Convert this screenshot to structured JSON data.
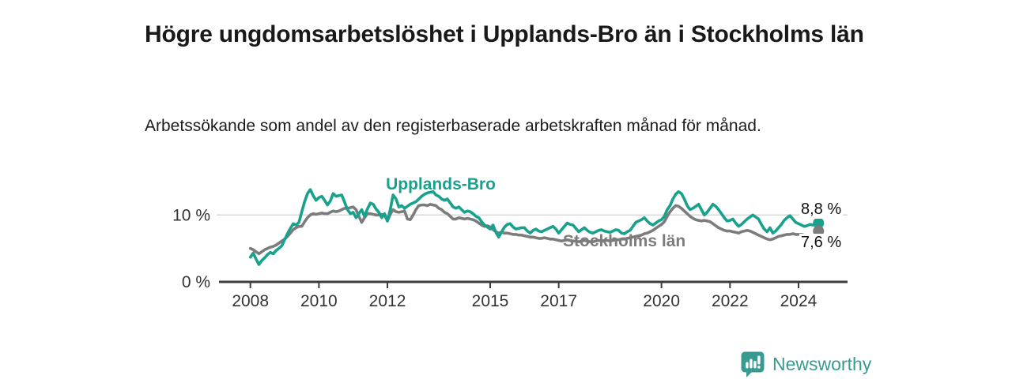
{
  "title": "Högre ungdomsarbetslöshet i Upplands-Bro än i Stockholms län",
  "subtitle": "Arbetssökande som andel av den registerbaserade arbetskraften månad för månad.",
  "branding": {
    "name": "Newsworthy",
    "color": "#399a90",
    "icon": "bar-chart-speech-bubble"
  },
  "chart_data": {
    "type": "line",
    "title": "Högre ungdomsarbetslöshet i Upplands-Bro än i Stockholms län",
    "subtitle": "Arbetssökande som andel av den registerbaserade arbetskraften månad för månad.",
    "x_unit": "month",
    "x_start": 2008.0,
    "x_end": 2024.583,
    "x_ticks": [
      2008,
      2010,
      2012,
      2015,
      2017,
      2020,
      2022,
      2024
    ],
    "y_ticks": [
      {
        "value": 0,
        "label": "0 %"
      },
      {
        "value": 10,
        "label": "10 %"
      }
    ],
    "ylim": [
      0,
      15
    ],
    "grid_values": [
      10
    ],
    "grid_color": "#d8d8d8",
    "axis_color": "#3d3d3d",
    "tick_label_color": "#333333",
    "legend_position": "inline-labels",
    "series": [
      {
        "name": "Upplands-Bro",
        "color": "#18a18d",
        "end_label": "8,8 %",
        "end_value": 8.8,
        "values": [
          3.7,
          4.3,
          3.4,
          2.6,
          3.2,
          3.6,
          4.1,
          4.4,
          4.2,
          4.7,
          5.0,
          5.4,
          6.3,
          7.2,
          8.0,
          8.7,
          8.5,
          8.9,
          10.5,
          12.0,
          13.2,
          13.8,
          12.9,
          12.2,
          12.6,
          12.8,
          12.2,
          11.5,
          12.1,
          13.2,
          12.8,
          12.9,
          13.0,
          11.9,
          10.8,
          10.2,
          10.4,
          9.6,
          10.2,
          10.8,
          9.8,
          10.9,
          11.8,
          11.6,
          10.9,
          10.4,
          9.6,
          10.2,
          9.1,
          10.8,
          13.0,
          12.4,
          11.2,
          11.4,
          11.0,
          11.3,
          11.6,
          11.8,
          12.0,
          12.4,
          12.8,
          13.1,
          13.3,
          13.4,
          13.5,
          13.0,
          12.8,
          12.4,
          12.2,
          12.4,
          11.8,
          11.2,
          11.0,
          11.2,
          10.8,
          10.4,
          10.6,
          10.5,
          10.2,
          9.8,
          9.6,
          9.0,
          8.5,
          8.2,
          7.9,
          8.5,
          7.4,
          6.7,
          7.5,
          8.2,
          8.6,
          8.7,
          8.2,
          7.9,
          8.0,
          8.1,
          8.1,
          7.6,
          7.3,
          7.7,
          7.9,
          7.6,
          7.5,
          7.7,
          7.9,
          8.1,
          8.3,
          7.9,
          7.3,
          7.8,
          8.3,
          8.8,
          8.6,
          8.5,
          8.0,
          7.5,
          7.8,
          8.1,
          7.7,
          7.4,
          7.3,
          7.5,
          7.7,
          7.8,
          7.6,
          7.5,
          7.4,
          7.6,
          7.8,
          7.7,
          7.3,
          7.2,
          7.5,
          7.7,
          8.3,
          8.9,
          9.1,
          9.3,
          9.6,
          9.1,
          8.7,
          8.5,
          8.8,
          9.1,
          9.3,
          9.8,
          10.8,
          11.4,
          12.4,
          13.1,
          13.5,
          13.2,
          12.4,
          11.4,
          10.8,
          11.0,
          11.3,
          11.6,
          10.8,
          10.0,
          10.4,
          11.0,
          11.6,
          11.3,
          10.8,
          10.2,
          9.6,
          9.1,
          9.2,
          9.4,
          8.8,
          8.3,
          8.6,
          9.0,
          9.4,
          9.7,
          10.0,
          9.7,
          9.4,
          8.6,
          7.9,
          7.5,
          8.1,
          7.3,
          7.6,
          8.1,
          8.6,
          9.2,
          9.6,
          9.9,
          9.4,
          8.9,
          8.7,
          8.5,
          8.3,
          8.4,
          8.6,
          8.5,
          8.6,
          8.8
        ]
      },
      {
        "name": "Stockholms län",
        "color": "#7c7c7c",
        "end_label": "7,6 %",
        "end_value": 7.6,
        "values": [
          5.0,
          4.8,
          4.5,
          4.2,
          4.5,
          4.8,
          5.0,
          5.2,
          5.3,
          5.5,
          5.8,
          6.1,
          6.4,
          6.8,
          7.3,
          7.8,
          8.1,
          8.3,
          8.3,
          9.0,
          9.6,
          10.0,
          10.2,
          10.1,
          10.2,
          10.3,
          10.2,
          10.2,
          10.4,
          10.6,
          10.5,
          10.6,
          10.8,
          11.0,
          11.0,
          11.1,
          11.2,
          10.8,
          9.8,
          8.9,
          9.6,
          10.2,
          10.2,
          10.1,
          10.0,
          10.0,
          10.1,
          10.0,
          9.1,
          10.1,
          10.8,
          10.5,
          10.4,
          10.5,
          10.6,
          9.4,
          9.3,
          10.0,
          10.8,
          11.4,
          11.5,
          11.5,
          11.4,
          11.6,
          11.5,
          11.4,
          11.0,
          10.8,
          10.4,
          10.2,
          9.8,
          9.4,
          9.4,
          9.6,
          9.5,
          9.4,
          9.5,
          9.4,
          9.3,
          9.1,
          8.8,
          8.5,
          8.3,
          8.4,
          8.2,
          7.8,
          7.5,
          7.3,
          7.4,
          7.3,
          7.3,
          7.2,
          7.1,
          7.1,
          7.0,
          7.0,
          6.9,
          6.8,
          6.7,
          6.7,
          6.6,
          6.5,
          6.5,
          6.6,
          6.5,
          6.4,
          6.4,
          6.3,
          6.2,
          6.1,
          6.2,
          6.3,
          6.2,
          6.1,
          6.1,
          6.0,
          6.1,
          6.2,
          6.1,
          6.0,
          6.0,
          6.1,
          6.2,
          6.1,
          6.2,
          6.2,
          6.1,
          6.2,
          6.3,
          6.3,
          6.4,
          6.4,
          6.5,
          6.6,
          6.7,
          6.8,
          6.9,
          7.0,
          7.2,
          7.3,
          7.5,
          7.7,
          8.0,
          8.3,
          8.6,
          9.0,
          9.8,
          10.5,
          11.0,
          11.4,
          11.3,
          11.0,
          10.6,
          10.2,
          9.8,
          9.5,
          9.3,
          9.2,
          9.1,
          9.2,
          9.1,
          9.0,
          8.7,
          8.4,
          8.1,
          7.9,
          7.7,
          7.6,
          7.6,
          7.5,
          7.4,
          7.3,
          7.5,
          7.6,
          7.7,
          7.6,
          7.4,
          7.2,
          7.0,
          6.8,
          6.6,
          6.4,
          6.3,
          6.4,
          6.6,
          6.8,
          6.9,
          7.0,
          7.1,
          7.1,
          7.2,
          7.1,
          7.1,
          7.1,
          7.0,
          6.9,
          6.8,
          6.7,
          7.0,
          7.6
        ]
      }
    ]
  }
}
